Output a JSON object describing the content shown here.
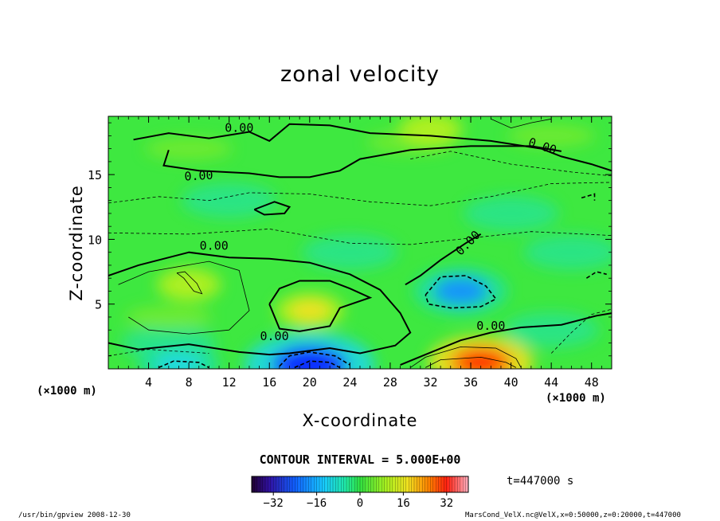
{
  "chart_data": {
    "type": "heatmap",
    "title": "zonal velocity",
    "xlabel": "X-coordinate",
    "ylabel": "Z-coordinate",
    "x_unit_label": "(×1000 m)",
    "x_ticks": [
      4,
      8,
      12,
      16,
      20,
      24,
      28,
      32,
      36,
      40,
      44,
      48
    ],
    "y_ticks": [
      5,
      10,
      15
    ],
    "xlim": [
      0,
      50
    ],
    "ylim": [
      0,
      19.5
    ],
    "contour_interval_label": "CONTOUR INTERVAL = 5.000E+00",
    "contour_label": "0.00",
    "colorbar": {
      "range": [
        -40,
        40
      ],
      "ticks": [
        -32,
        -16,
        0,
        16,
        32
      ],
      "tick_labels": [
        "−32",
        "−16",
        "0",
        "16",
        "32"
      ]
    },
    "features": [
      {
        "kind": "negative-core",
        "x": 35,
        "z": 6,
        "value": -20
      },
      {
        "kind": "negative-core",
        "x": 20,
        "z": 0.3,
        "value": -35
      },
      {
        "kind": "negative-core",
        "x": 7,
        "z": 0.3,
        "value": -15
      },
      {
        "kind": "positive-core",
        "x": 37,
        "z": 0.5,
        "value": 25
      },
      {
        "kind": "positive-core",
        "x": 20,
        "z": 4.5,
        "value": 10
      },
      {
        "kind": "positive-core",
        "x": 8,
        "z": 6.5,
        "value": 8
      },
      {
        "kind": "positive-core",
        "x": 32,
        "z": 18.5,
        "value": 8
      }
    ],
    "time_label": "t=447000 s"
  },
  "footer": {
    "left": "/usr/bin/gpview  2008-12-30",
    "right": "MarsCond_VelX.nc@VelX,x=0:50000,z=0:20000,t=447000"
  },
  "colors": {
    "background": "#ffffff",
    "field_base": "#3ee840",
    "neg_light": "#1ae0c0",
    "neg_strong": "#1060ff",
    "pos_light": "#b4f020",
    "pos_strong": "#ff5000"
  }
}
